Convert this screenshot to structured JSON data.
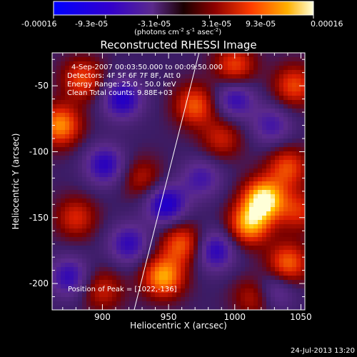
{
  "colorbar": {
    "tick_labels": [
      "-0.00016",
      "-9.3e-05",
      "-3.1e-05",
      "3.1e-05",
      "9.3e-05",
      "0.00016"
    ],
    "unit_label": "(photons cm",
    "unit_exp1": "-2",
    "unit_mid": " s",
    "unit_exp2": "-1",
    "unit_mid2": " asec",
    "unit_exp3": "-2",
    "unit_end": ")",
    "range": [
      -0.00016,
      0.00016
    ]
  },
  "info_lines": [
    "4-Sep-2007 00:03:50.000 to 00:09:50.000",
    "Detectors: 4F 5F 6F 7F 8F, Att 0",
    "Energy Range: 25.0 - 50.0 keV",
    "Clean    Total counts: 9.88E+03"
  ],
  "peak_label": "Position of Peak = [1022,-136]",
  "footer_date": "24-Jul-2013 13:20",
  "chart_data": {
    "type": "heatmap",
    "title": "Reconstructed RHESSI Image",
    "xlabel": "Heliocentric X (arcsec)",
    "ylabel": "Heliocentric Y (arcsec)",
    "xlim": [
      862,
      1053
    ],
    "ylim": [
      -220,
      -25
    ],
    "xticks": [
      900,
      950,
      1000,
      1050
    ],
    "yticks": [
      -50,
      -100,
      -150,
      -200
    ],
    "peak": [
      1022,
      -136
    ],
    "limb_line": [
      [
        924,
        -220
      ],
      [
        973,
        -25
      ]
    ],
    "sources": [
      {
        "x": 1022,
        "y": -136,
        "value": 1.0
      },
      {
        "x": 1011,
        "y": -155,
        "value": 0.8
      },
      {
        "x": 1040,
        "y": -112,
        "value": 0.55
      },
      {
        "x": 868,
        "y": -80,
        "value": 0.75
      },
      {
        "x": 885,
        "y": -45,
        "value": 0.55
      },
      {
        "x": 946,
        "y": -195,
        "value": 0.8
      },
      {
        "x": 960,
        "y": -170,
        "value": 0.6
      },
      {
        "x": 970,
        "y": -65,
        "value": 0.6
      },
      {
        "x": 1000,
        "y": -35,
        "value": 0.55
      },
      {
        "x": 1040,
        "y": -185,
        "value": 0.65
      },
      {
        "x": 1045,
        "y": -50,
        "value": 0.55
      },
      {
        "x": 990,
        "y": -90,
        "value": 0.4
      },
      {
        "x": 880,
        "y": -150,
        "value": 0.45
      },
      {
        "x": 900,
        "y": -205,
        "value": 0.4
      },
      {
        "x": 930,
        "y": -120,
        "value": 0.35
      },
      {
        "x": 1015,
        "y": -210,
        "value": 0.4
      },
      {
        "x": 1048,
        "y": -145,
        "value": 0.45
      },
      {
        "x": 915,
        "y": -60,
        "value": -0.6
      },
      {
        "x": 902,
        "y": -110,
        "value": -0.55
      },
      {
        "x": 948,
        "y": -140,
        "value": -0.65
      },
      {
        "x": 920,
        "y": -170,
        "value": -0.5
      },
      {
        "x": 975,
        "y": -120,
        "value": -0.4
      },
      {
        "x": 985,
        "y": -175,
        "value": -0.55
      },
      {
        "x": 1000,
        "y": -60,
        "value": -0.5
      },
      {
        "x": 1028,
        "y": -80,
        "value": -0.4
      },
      {
        "x": 1030,
        "y": -205,
        "value": -0.4
      },
      {
        "x": 875,
        "y": -195,
        "value": -0.5
      }
    ]
  }
}
